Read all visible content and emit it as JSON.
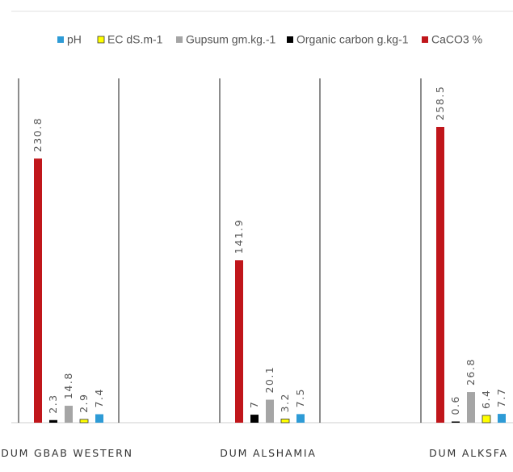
{
  "chart_data": {
    "type": "bar",
    "categories": [
      "DUM GBAB WESTERN",
      "DUM ALSHAMIA",
      "DUM ALKSFA"
    ],
    "series": [
      {
        "name": "CaCO3 %",
        "color": "#C0161B",
        "values": [
          230.8,
          141.9,
          258.5
        ]
      },
      {
        "name": "Organic carbon g.kg-1",
        "color": "#000000",
        "values": [
          2.3,
          7,
          0.6
        ]
      },
      {
        "name": "Gupsum gm.kg.-1",
        "color": "#A5A5A5",
        "values": [
          14.8,
          20.1,
          26.8
        ]
      },
      {
        "name": "EC dS.m-1",
        "color": "#FFFF00",
        "values": [
          2.9,
          3.2,
          6.4
        ]
      },
      {
        "name": "pH",
        "color": "#2E9BD6",
        "values": [
          7.4,
          7.5,
          7.7
        ]
      }
    ],
    "legend_order": [
      "pH",
      "EC dS.m-1",
      "Gupsum gm.kg.-1",
      "Organic carbon g.kg-1",
      "CaCO3 %"
    ],
    "ylim": [
      0,
      260
    ],
    "legend_position": "top",
    "grid": false
  }
}
